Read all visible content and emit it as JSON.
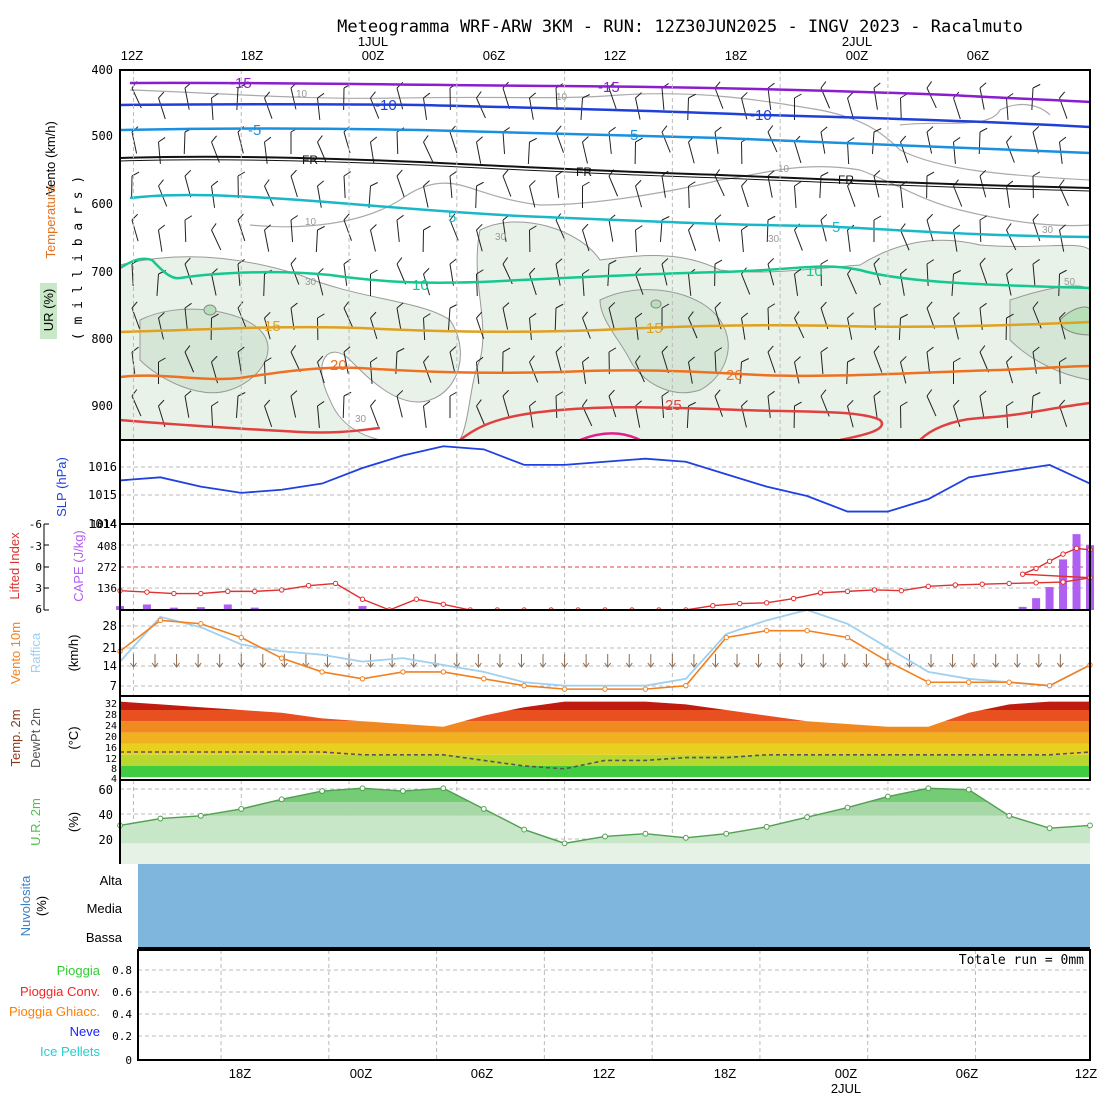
{
  "title": "Meteogramma WRF-ARW 3KM - RUN: 12Z30JUN2025 - INGV 2023 - Racalmuto",
  "time_axis": {
    "top_labels": [
      "12Z",
      "18Z",
      "00Z",
      "06Z",
      "12Z",
      "18Z",
      "00Z",
      "06Z"
    ],
    "top_dates": [
      "1JUL",
      "2JUL"
    ],
    "bottom_labels": [
      "18Z",
      "00Z",
      "06Z",
      "12Z",
      "18Z",
      "00Z",
      "06Z",
      "12Z"
    ],
    "bottom_dates": [
      "2JUL"
    ]
  },
  "panels": {
    "upper_air": {
      "label_wind": "Vento (km/h)",
      "label_temp": "Temperatura",
      "label_rh": "UR (%)",
      "label_axis": "( m i l l i b a r s )",
      "y_ticks": [
        "400",
        "500",
        "600",
        "700",
        "800",
        "900"
      ],
      "isotherm_labels": [
        "-15",
        "-15",
        "-10",
        "-10",
        "-5",
        "-5",
        "FR",
        "FR",
        "FR",
        "5",
        "5",
        "10",
        "10",
        "15",
        "15",
        "20",
        "20",
        "25"
      ],
      "rh_labels": [
        "10",
        "10",
        "10",
        "10",
        "30",
        "30",
        "30",
        "30",
        "30",
        "50"
      ]
    },
    "slp": {
      "label": "SLP (hPa)",
      "y_ticks": [
        "1016",
        "1015",
        "1014"
      ]
    },
    "cape": {
      "label_li": "Lifted Index",
      "label_cape": "CAPE (J/kg)",
      "li_ticks": [
        "-6",
        "-3",
        "0",
        "3",
        "6"
      ],
      "cape_ticks": [
        "408",
        "272",
        "136"
      ]
    },
    "wind10m": {
      "label_wind": "Vento 10m",
      "label_gust": "Raffica",
      "label_unit": "(km/h)",
      "y_ticks": [
        "28",
        "21",
        "14",
        "7"
      ]
    },
    "temp2m": {
      "label_temp": "Temp. 2m",
      "label_dew": "DewPt 2m",
      "label_unit": "(°C)",
      "y_ticks": [
        "32",
        "28",
        "24",
        "20",
        "16",
        "12",
        "8",
        "4"
      ]
    },
    "rh2m": {
      "label": "U.R. 2m",
      "label_unit": "(%)",
      "y_ticks": [
        "60",
        "40",
        "20"
      ]
    },
    "cloud": {
      "label": "Nuvolosita",
      "label_unit": "(%)",
      "levels": [
        "Alta",
        "Media",
        "Bassa"
      ]
    },
    "precip": {
      "legend": [
        "Pioggia",
        "Pioggia Conv.",
        "Pioggia Ghiacc.",
        "Neve",
        "Ice Pellets"
      ],
      "total": "Totale run = 0mm",
      "y_ticks": [
        "0.8",
        "0.6",
        "0.4",
        "0.2",
        "0"
      ]
    }
  },
  "colors": {
    "pioggia": "#33cc33",
    "pioggia_conv": "#ff2020",
    "pioggia_ghiacc": "#ff8000",
    "neve": "#2020ff",
    "ice_pellets": "#20d0d0",
    "slp": "#2040e0",
    "cape_bar": "#b060f0",
    "lifted_index": "#e03030",
    "wind10m": "#f08020",
    "gust": "#9fd0f0",
    "cloud": "#7fb6dd",
    "rh_line": "#50a050"
  },
  "chart_data": [
    {
      "type": "line",
      "title": "SLP (hPa)",
      "x_unit": "hours since 12Z 30JUN2025",
      "x": [
        0,
        3,
        6,
        9,
        12,
        15,
        18,
        21,
        24,
        27,
        30,
        33,
        36,
        39,
        42,
        45,
        48,
        51,
        54,
        57,
        60,
        63,
        66,
        69,
        72
      ],
      "series": [
        {
          "name": "SLP (hPa)",
          "values": [
            1015.4,
            1015.5,
            1015.2,
            1015.0,
            1015.1,
            1015.3,
            1015.8,
            1016.2,
            1016.5,
            1016.4,
            1015.9,
            1015.9,
            1016.0,
            1016.1,
            1016.0,
            1015.6,
            1015.2,
            1014.9,
            1014.4,
            1014.4,
            1014.8,
            1015.5,
            1015.7,
            1015.9,
            1015.3
          ]
        }
      ],
      "ylim": [
        1014.0,
        1016.7
      ]
    },
    {
      "type": "bar",
      "title": "CAPE (J/kg) / Lifted Index",
      "x_unit": "hours since 12Z 30JUN2025",
      "x": [
        0,
        2,
        4,
        6,
        8,
        10,
        12,
        14,
        16,
        18,
        20,
        22,
        24,
        26,
        28,
        30,
        32,
        34,
        36,
        38,
        40,
        42,
        44,
        46,
        48,
        50,
        52,
        54,
        56,
        58,
        60,
        62,
        64,
        66,
        68,
        70,
        72
      ],
      "series": [
        {
          "name": "CAPE (J/kg)",
          "values": [
            25,
            35,
            15,
            18,
            35,
            15,
            0,
            0,
            0,
            25,
            0,
            0,
            0,
            0,
            0,
            0,
            0,
            0,
            0,
            0,
            0,
            0,
            0,
            0,
            0,
            0,
            0,
            0,
            0,
            0,
            0,
            0,
            0,
            0,
            0,
            0,
            0
          ]
        },
        {
          "name": "Lifted Index",
          "values": [
            3.3,
            3.5,
            3.7,
            3.7,
            3.4,
            3.4,
            3.2,
            2.6,
            2.3,
            4.5,
            6.0,
            4.5,
            5.2,
            6.0,
            6.0,
            6.0,
            6.0,
            6.0,
            6.0,
            6.0,
            6.0,
            6.0,
            5.4,
            5.1,
            5.0,
            4.4,
            3.6,
            3.4,
            3.2,
            3.3,
            2.7,
            2.5,
            2.4,
            2.3,
            2.2,
            2.1,
            1.5
          ]
        }
      ],
      "cape_tail": {
        "x": [
          67,
          68,
          69,
          70,
          71,
          72
        ],
        "values": [
          20,
          75,
          145,
          320,
          480,
          410
        ]
      },
      "li_tail": [
        1.0,
        0.2,
        -0.8,
        -1.8,
        -2.6,
        -2.4
      ],
      "ylim_li": [
        6,
        -6
      ],
      "ylim_cape": [
        0,
        544
      ]
    },
    {
      "type": "line",
      "title": "Vento 10m / Raffica (km/h)",
      "x_unit": "hours since 12Z 30JUN2025",
      "x": [
        0,
        3,
        6,
        9,
        12,
        15,
        18,
        21,
        24,
        27,
        30,
        33,
        36,
        39,
        42,
        45,
        48,
        51,
        54,
        57,
        60,
        63,
        66,
        69,
        72
      ],
      "series": [
        {
          "name": "Vento 10m",
          "values": [
            18,
            27,
            26,
            22,
            16,
            12,
            10,
            12,
            12,
            10,
            8,
            7,
            7,
            7,
            8,
            22,
            24,
            24,
            22,
            15,
            9,
            9,
            9,
            8,
            14
          ]
        },
        {
          "name": "Raffica",
          "values": [
            15,
            28,
            25,
            20,
            18,
            17,
            15,
            16,
            14,
            12,
            9,
            8,
            8,
            8,
            10,
            23,
            27,
            30,
            26,
            19,
            12,
            10,
            9,
            8,
            14
          ]
        }
      ],
      "ylim": [
        5,
        30
      ]
    },
    {
      "type": "area",
      "title": "Temp. 2m / DewPt 2m (°C)",
      "x_unit": "hours since 12Z 30JUN2025",
      "x": [
        0,
        3,
        6,
        9,
        12,
        15,
        18,
        21,
        24,
        27,
        30,
        33,
        36,
        39,
        42,
        45,
        48,
        51,
        54,
        57,
        60,
        63,
        66,
        69,
        72
      ],
      "series": [
        {
          "name": "Temp. 2m",
          "values": [
            31,
            30,
            29,
            28,
            27,
            25,
            24,
            23,
            22,
            26,
            29,
            31,
            31,
            31,
            30,
            28,
            26,
            24,
            23,
            22,
            22,
            27,
            30,
            31,
            31
          ]
        },
        {
          "name": "DewPt 2m",
          "values": [
            13,
            13,
            13,
            13,
            13,
            13,
            12,
            12,
            12,
            10,
            8,
            7,
            10,
            10,
            11,
            11,
            12,
            12,
            12,
            12,
            12,
            12,
            12,
            12,
            13
          ]
        }
      ],
      "ylim": [
        3,
        33
      ]
    },
    {
      "type": "line",
      "title": "U.R. 2m (%)",
      "x_unit": "hours since 12Z 30JUN2025",
      "x": [
        0,
        3,
        6,
        9,
        12,
        15,
        18,
        21,
        24,
        27,
        30,
        33,
        36,
        39,
        42,
        45,
        48,
        51,
        54,
        57,
        60,
        63,
        66,
        69,
        72
      ],
      "series": [
        {
          "name": "U.R. 2m",
          "values": [
            33,
            38,
            40,
            45,
            52,
            58,
            60,
            58,
            60,
            45,
            30,
            20,
            25,
            27,
            24,
            27,
            32,
            39,
            46,
            54,
            60,
            59,
            40,
            31,
            33
          ]
        }
      ],
      "ylim": [
        5,
        66
      ]
    },
    {
      "type": "bar",
      "title": "Nuvolosita (%)",
      "categories": [
        "Alta",
        "Media",
        "Bassa"
      ],
      "values": [
        0,
        0,
        0
      ]
    },
    {
      "type": "bar",
      "title": "Totale run = 0mm",
      "series": [
        {
          "name": "Pioggia",
          "values": []
        },
        {
          "name": "Pioggia Conv.",
          "values": []
        },
        {
          "name": "Pioggia Ghiacc.",
          "values": []
        },
        {
          "name": "Neve",
          "values": []
        },
        {
          "name": "Ice Pellets",
          "values": []
        }
      ],
      "ylim": [
        0,
        1
      ]
    }
  ]
}
